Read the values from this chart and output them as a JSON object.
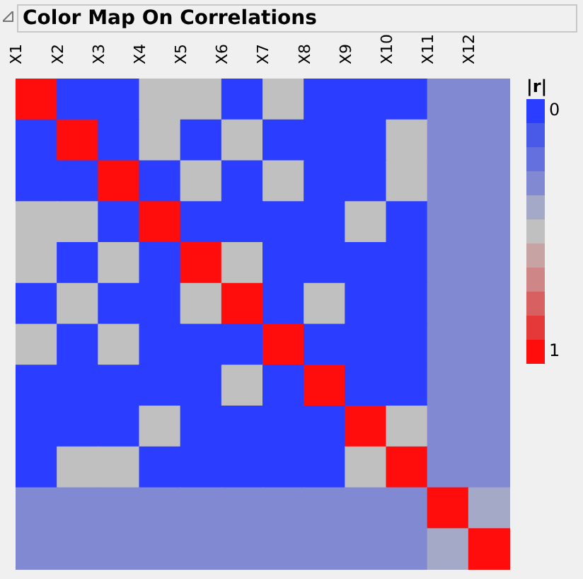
{
  "chart_data": {
    "type": "heatmap",
    "title": "Color Map On Correlations",
    "clabel": "|r|",
    "categories": [
      "X1",
      "X2",
      "X3",
      "X4",
      "X5",
      "X6",
      "X7",
      "X8",
      "X9",
      "X10",
      "X11",
      "X12"
    ],
    "y_categories": [
      null,
      null,
      null,
      null,
      null,
      null,
      null,
      null,
      null,
      null,
      null,
      null
    ],
    "cells": [
      [
        1,
        0,
        0,
        0.5,
        0.5,
        0,
        0.5,
        0,
        0,
        0,
        0.3,
        0.3
      ],
      [
        0,
        1,
        0,
        0.5,
        0,
        0.5,
        0,
        0,
        0,
        0.5,
        0.3,
        0.3
      ],
      [
        0,
        0,
        1,
        0,
        0.5,
        0,
        0.5,
        0,
        0,
        0.5,
        0.3,
        0.3
      ],
      [
        0.5,
        0.5,
        0,
        1,
        0,
        0,
        0,
        0,
        0.5,
        0,
        0.3,
        0.3
      ],
      [
        0.5,
        0,
        0.5,
        0,
        1,
        0.5,
        0,
        0,
        0,
        0,
        0.3,
        0.3
      ],
      [
        0,
        0.5,
        0,
        0,
        0.5,
        1,
        0,
        0.5,
        0,
        0,
        0.3,
        0.3
      ],
      [
        0.5,
        0,
        0.5,
        0,
        0,
        0,
        1,
        0,
        0,
        0,
        0.3,
        0.3
      ],
      [
        0,
        0,
        0,
        0,
        0,
        0.5,
        0,
        1,
        0,
        0,
        0.3,
        0.3
      ],
      [
        0,
        0,
        0,
        0.5,
        0,
        0,
        0,
        0,
        1,
        0.5,
        0.3,
        0.3
      ],
      [
        0,
        0.5,
        0.5,
        0,
        0,
        0,
        0,
        0,
        0.5,
        1,
        0.3,
        0.3
      ],
      [
        0.3,
        0.3,
        0.3,
        0.3,
        0.3,
        0.3,
        0.3,
        0.3,
        0.3,
        0.3,
        1,
        0.4
      ],
      [
        0.3,
        0.3,
        0.3,
        0.3,
        0.3,
        0.3,
        0.3,
        0.3,
        0.3,
        0.3,
        0.4,
        1
      ]
    ],
    "clim": [
      -0.05,
      1.05
    ],
    "cticks": [
      0,
      1
    ]
  }
}
